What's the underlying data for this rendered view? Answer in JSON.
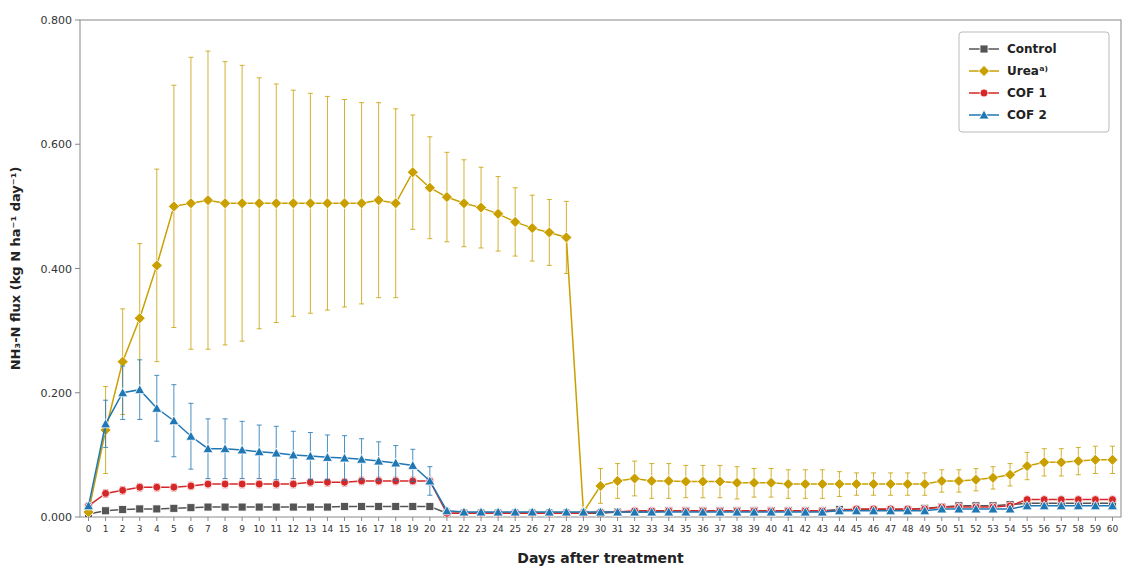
{
  "chart_data": {
    "type": "line",
    "xlabel": "Days after treatment",
    "ylabel": "NH₃-N flux (kg N ha⁻¹ day⁻¹)",
    "x": [
      0,
      1,
      2,
      3,
      4,
      5,
      6,
      7,
      8,
      9,
      10,
      11,
      12,
      13,
      14,
      15,
      16,
      17,
      18,
      19,
      20,
      21,
      22,
      23,
      24,
      25,
      26,
      27,
      28,
      29,
      30,
      31,
      32,
      33,
      34,
      35,
      36,
      37,
      38,
      39,
      40,
      41,
      42,
      43,
      44,
      45,
      46,
      47,
      48,
      49,
      50,
      51,
      52,
      53,
      54,
      55,
      56,
      57,
      58,
      59,
      60
    ],
    "xlim": [
      -0.5,
      60.5
    ],
    "xticks": [
      0,
      1,
      2,
      3,
      4,
      5,
      6,
      7,
      8,
      9,
      10,
      11,
      12,
      13,
      14,
      15,
      16,
      17,
      18,
      19,
      20,
      21,
      22,
      23,
      24,
      25,
      26,
      27,
      28,
      29,
      30,
      31,
      32,
      33,
      34,
      35,
      36,
      37,
      38,
      39,
      40,
      41,
      42,
      43,
      44,
      45,
      46,
      47,
      48,
      49,
      50,
      51,
      52,
      53,
      54,
      55,
      56,
      57,
      58,
      59,
      60
    ],
    "ylim": [
      0.0,
      0.8
    ],
    "yticks": [
      {
        "value": 0.0,
        "label": "0.000"
      },
      {
        "value": 0.2,
        "label": "0.200"
      },
      {
        "value": 0.4,
        "label": "0.400"
      },
      {
        "value": 0.6,
        "label": "0.600"
      },
      {
        "value": 0.8,
        "label": "0.800"
      }
    ],
    "grid": false,
    "legend": "upper right",
    "series": [
      {
        "name": "Control",
        "color": "#555555",
        "marker": "square",
        "values": [
          0.005,
          0.01,
          0.012,
          0.013,
          0.013,
          0.014,
          0.015,
          0.016,
          0.016,
          0.016,
          0.016,
          0.016,
          0.016,
          0.016,
          0.016,
          0.017,
          0.017,
          0.017,
          0.017,
          0.017,
          0.017,
          0.006,
          0.006,
          0.006,
          0.006,
          0.006,
          0.006,
          0.006,
          0.006,
          0.006,
          0.006,
          0.008,
          0.008,
          0.008,
          0.01,
          0.01,
          0.01,
          0.01,
          0.01,
          0.01,
          0.01,
          0.01,
          0.01,
          0.01,
          0.012,
          0.012,
          0.012,
          0.012,
          0.012,
          0.014,
          0.016,
          0.018,
          0.018,
          0.018,
          0.02,
          0.022,
          0.022,
          0.022,
          0.022,
          0.022,
          0.022
        ],
        "errors": [
          0.002,
          0.004,
          0.004,
          0.004,
          0.004,
          0.004,
          0.004,
          0.004,
          0.004,
          0.004,
          0.004,
          0.004,
          0.004,
          0.004,
          0.004,
          0.004,
          0.004,
          0.004,
          0.004,
          0.004,
          0.004,
          0.002,
          0.002,
          0.002,
          0.002,
          0.002,
          0.002,
          0.002,
          0.002,
          0.002,
          0.002,
          0.002,
          0.002,
          0.002,
          0.002,
          0.002,
          0.002,
          0.002,
          0.002,
          0.002,
          0.002,
          0.002,
          0.002,
          0.002,
          0.002,
          0.002,
          0.002,
          0.002,
          0.002,
          0.002,
          0.002,
          0.002,
          0.002,
          0.002,
          0.002,
          0.002,
          0.002,
          0.002,
          0.002,
          0.002,
          0.002
        ]
      },
      {
        "name": "Ureaᵃ⁾",
        "color": "#c9a000",
        "marker": "diamond",
        "values": [
          0.008,
          0.14,
          0.25,
          0.32,
          0.405,
          0.5,
          0.505,
          0.51,
          0.505,
          0.505,
          0.505,
          0.505,
          0.505,
          0.505,
          0.505,
          0.505,
          0.505,
          0.51,
          0.505,
          0.555,
          0.53,
          0.515,
          0.505,
          0.498,
          0.488,
          0.475,
          0.465,
          0.458,
          0.45,
          0.008,
          0.05,
          0.058,
          0.062,
          0.058,
          0.058,
          0.057,
          0.057,
          0.057,
          0.055,
          0.055,
          0.055,
          0.053,
          0.053,
          0.053,
          0.053,
          0.053,
          0.053,
          0.053,
          0.053,
          0.053,
          0.058,
          0.058,
          0.06,
          0.063,
          0.068,
          0.082,
          0.088,
          0.088,
          0.09,
          0.092,
          0.092
        ],
        "errors": [
          0.003,
          0.07,
          0.085,
          0.12,
          0.155,
          0.195,
          0.235,
          0.24,
          0.228,
          0.222,
          0.202,
          0.192,
          0.182,
          0.177,
          0.172,
          0.167,
          0.162,
          0.157,
          0.152,
          0.092,
          0.082,
          0.072,
          0.07,
          0.065,
          0.06,
          0.055,
          0.053,
          0.053,
          0.058,
          0.003,
          0.028,
          0.028,
          0.028,
          0.028,
          0.028,
          0.026,
          0.026,
          0.026,
          0.026,
          0.023,
          0.023,
          0.023,
          0.023,
          0.023,
          0.02,
          0.018,
          0.018,
          0.018,
          0.018,
          0.018,
          0.018,
          0.018,
          0.018,
          0.018,
          0.018,
          0.022,
          0.022,
          0.022,
          0.022,
          0.022,
          0.022
        ]
      },
      {
        "name": "COF 1",
        "color": "#d62728",
        "marker": "circle",
        "values": [
          0.018,
          0.038,
          0.043,
          0.048,
          0.048,
          0.048,
          0.05,
          0.053,
          0.053,
          0.053,
          0.053,
          0.053,
          0.053,
          0.056,
          0.056,
          0.056,
          0.058,
          0.058,
          0.058,
          0.058,
          0.058,
          0.006,
          0.006,
          0.006,
          0.006,
          0.006,
          0.006,
          0.006,
          0.006,
          0.006,
          0.008,
          0.008,
          0.01,
          0.01,
          0.01,
          0.01,
          0.01,
          0.01,
          0.01,
          0.01,
          0.01,
          0.01,
          0.01,
          0.01,
          0.01,
          0.013,
          0.013,
          0.013,
          0.013,
          0.013,
          0.016,
          0.016,
          0.016,
          0.016,
          0.018,
          0.028,
          0.028,
          0.028,
          0.028,
          0.028,
          0.028
        ],
        "errors": [
          0.004,
          0.006,
          0.006,
          0.006,
          0.006,
          0.006,
          0.006,
          0.006,
          0.006,
          0.006,
          0.006,
          0.006,
          0.006,
          0.006,
          0.006,
          0.006,
          0.006,
          0.006,
          0.006,
          0.006,
          0.006,
          0.002,
          0.002,
          0.002,
          0.002,
          0.002,
          0.002,
          0.002,
          0.002,
          0.002,
          0.002,
          0.002,
          0.002,
          0.002,
          0.002,
          0.002,
          0.002,
          0.002,
          0.002,
          0.002,
          0.002,
          0.002,
          0.002,
          0.002,
          0.002,
          0.002,
          0.002,
          0.002,
          0.002,
          0.002,
          0.002,
          0.002,
          0.002,
          0.002,
          0.002,
          0.004,
          0.004,
          0.004,
          0.004,
          0.004,
          0.004
        ]
      },
      {
        "name": "COF 2",
        "color": "#1f77b4",
        "marker": "triangle",
        "values": [
          0.018,
          0.15,
          0.2,
          0.205,
          0.175,
          0.155,
          0.13,
          0.11,
          0.11,
          0.108,
          0.105,
          0.103,
          0.1,
          0.098,
          0.096,
          0.095,
          0.093,
          0.09,
          0.087,
          0.083,
          0.058,
          0.01,
          0.008,
          0.008,
          0.008,
          0.008,
          0.008,
          0.008,
          0.008,
          0.008,
          0.008,
          0.008,
          0.008,
          0.008,
          0.008,
          0.008,
          0.008,
          0.008,
          0.008,
          0.008,
          0.008,
          0.008,
          0.008,
          0.008,
          0.01,
          0.01,
          0.01,
          0.01,
          0.01,
          0.01,
          0.013,
          0.013,
          0.013,
          0.013,
          0.013,
          0.018,
          0.018,
          0.018,
          0.018,
          0.018,
          0.018
        ],
        "errors": [
          0.004,
          0.038,
          0.043,
          0.048,
          0.053,
          0.058,
          0.053,
          0.048,
          0.048,
          0.046,
          0.043,
          0.043,
          0.038,
          0.038,
          0.036,
          0.036,
          0.033,
          0.031,
          0.028,
          0.026,
          0.023,
          0.004,
          0.004,
          0.004,
          0.004,
          0.004,
          0.004,
          0.004,
          0.004,
          0.004,
          0.004,
          0.004,
          0.004,
          0.004,
          0.004,
          0.004,
          0.004,
          0.004,
          0.004,
          0.004,
          0.004,
          0.004,
          0.004,
          0.004,
          0.004,
          0.004,
          0.004,
          0.004,
          0.004,
          0.004,
          0.004,
          0.004,
          0.004,
          0.004,
          0.004,
          0.004,
          0.004,
          0.004,
          0.004,
          0.004,
          0.004
        ]
      }
    ]
  }
}
